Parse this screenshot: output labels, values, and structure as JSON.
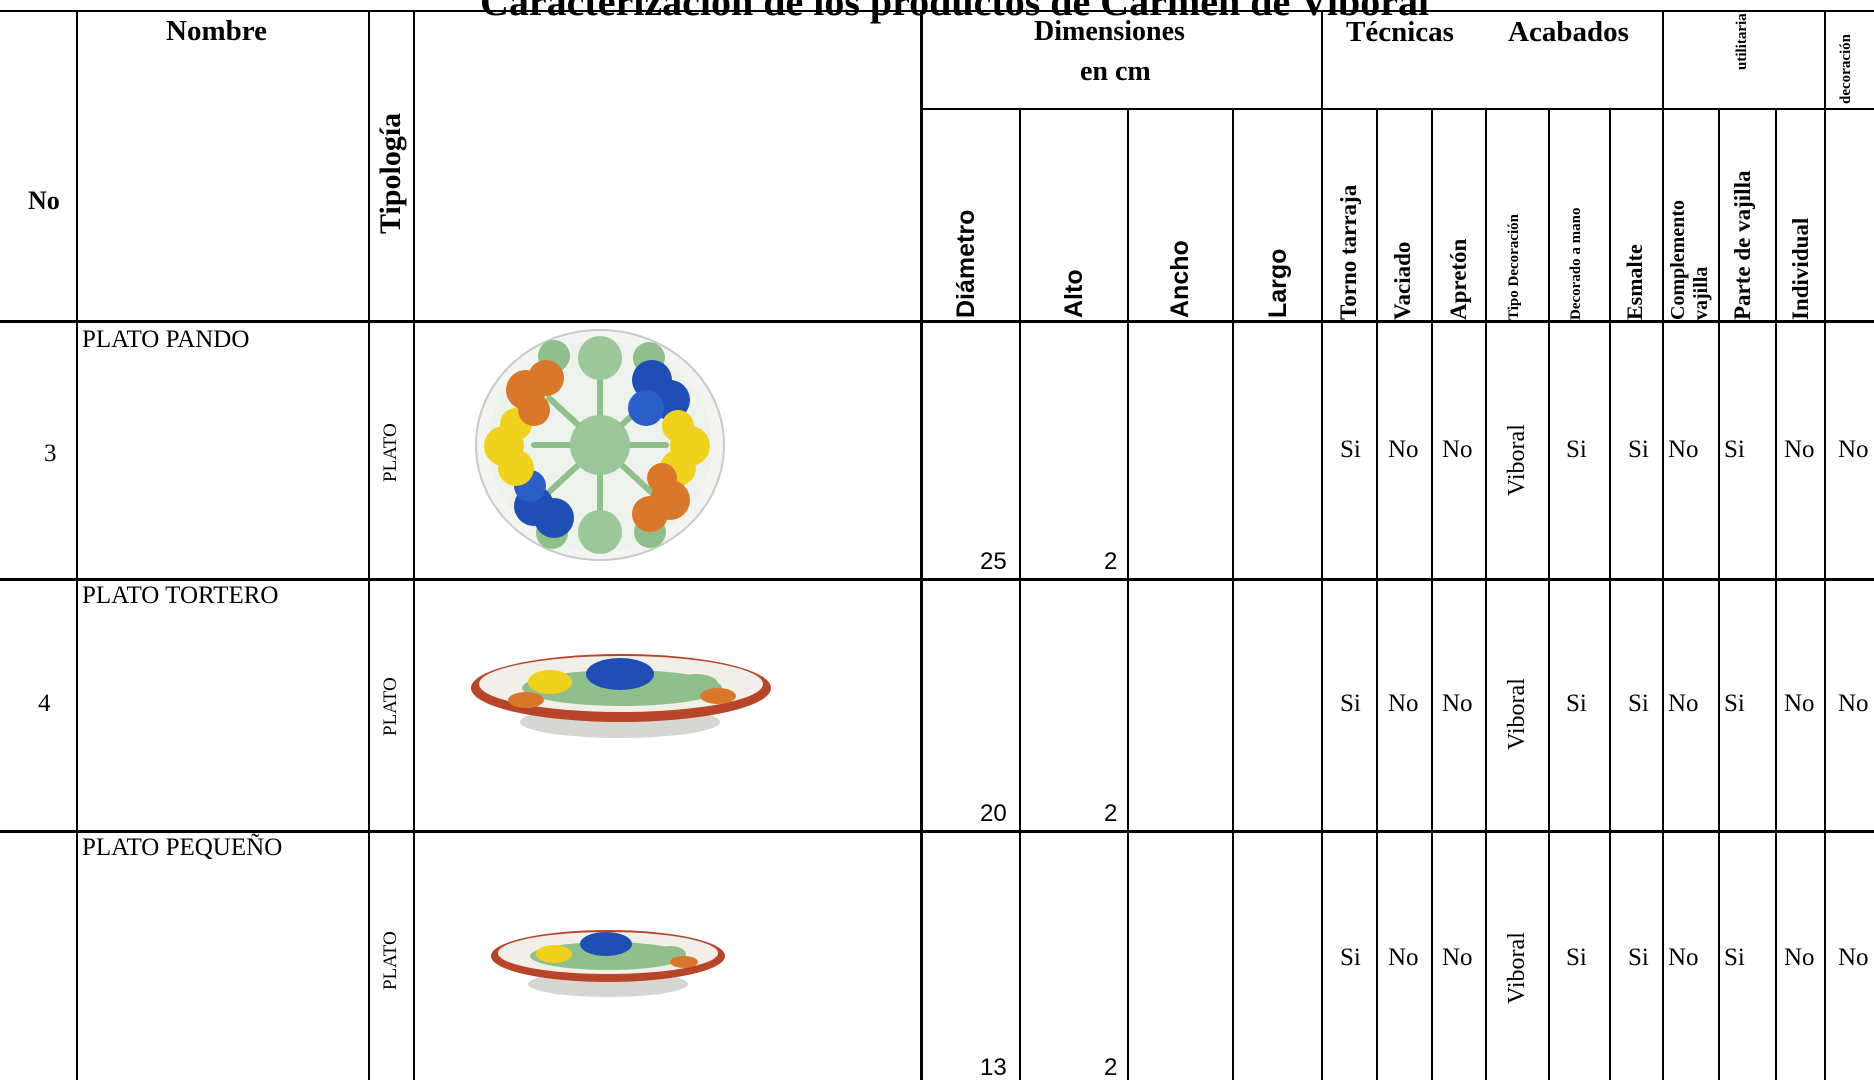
{
  "title": "Caracterización de los productos de Carmen de Viboral",
  "headers": {
    "no": "No",
    "nombre": "Nombre",
    "tipologia": "Tipología",
    "dimensiones": "Dimensiones",
    "en_cm": "en cm",
    "tecnicas": "Técnicas",
    "acabados": "Acabados",
    "utilitaria": "utilitaria",
    "decoracion": "decoración",
    "diametro": "Diámetro",
    "alto": "Alto",
    "ancho": "Ancho",
    "largo": "Largo",
    "torno_tarraja": "Torno tarraja",
    "vaciado": "Vaciado",
    "apreton": "Apretón",
    "tipo_decoracion": "Tipo Decoración",
    "decorado_a_mano": "Decorado a mano",
    "esmalte": "Esmalte",
    "complemento_vajilla_1": "Complemento",
    "complemento_vajilla_2": "vajilla",
    "parte_de_vajilla": "Parte de vajilla",
    "individual": "Individual"
  },
  "rows": [
    {
      "no": "3",
      "nombre": "PLATO PANDO",
      "tipologia": "PLATO",
      "diametro": "25",
      "alto": "2",
      "torno": "Si",
      "vaciado": "No",
      "apreton": "No",
      "tipo_decoracion": "Viboral",
      "decorado": "Si",
      "esmalte": "Si",
      "complemento": "No",
      "parte": "Si",
      "individual": "No",
      "decoracion": "No",
      "image": "plate-top-view"
    },
    {
      "no": "4",
      "nombre": "PLATO TORTERO",
      "tipologia": "PLATO",
      "diametro": "20",
      "alto": "2",
      "torno": "Si",
      "vaciado": "No",
      "apreton": "No",
      "tipo_decoracion": "Viboral",
      "decorado": "Si",
      "esmalte": "Si",
      "complemento": "No",
      "parte": "Si",
      "individual": "No",
      "decoracion": "No",
      "image": "plate-side-view"
    },
    {
      "no": "",
      "nombre": "PLATO  PEQUEÑO",
      "tipologia": "PLATO",
      "diametro": "13",
      "alto": "2",
      "torno": "Si",
      "vaciado": "No",
      "apreton": "No",
      "tipo_decoracion": "Viboral",
      "decorado": "Si",
      "esmalte": "Si",
      "complemento": "No",
      "parte": "Si",
      "individual": "No",
      "decoracion": "No",
      "image": "plate-side-view-small"
    }
  ],
  "colors": {
    "blue": "#1f4fb5",
    "yellow": "#f0d21e",
    "orange": "#d9782a",
    "green": "#8fbf8a",
    "rim": "#b8442a"
  }
}
